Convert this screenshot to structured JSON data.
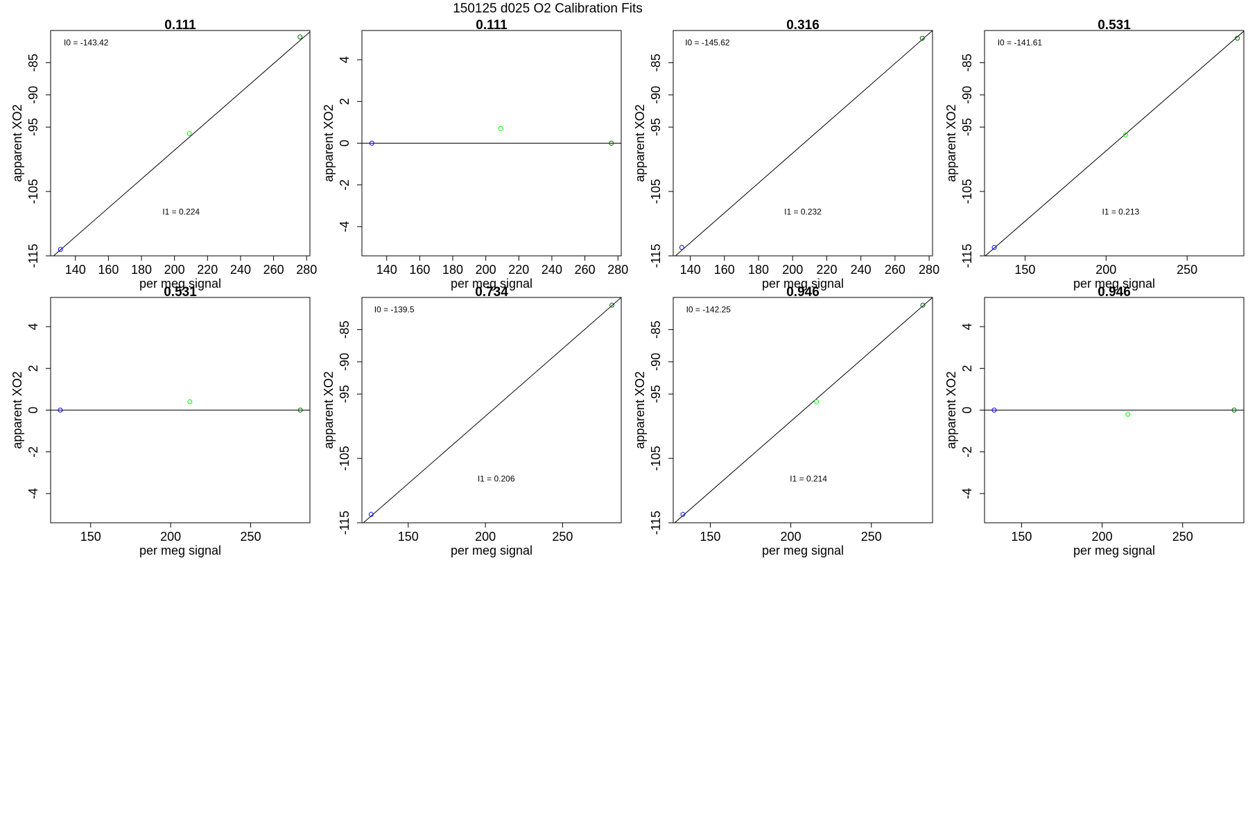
{
  "figure": {
    "title": "150125   d025   O2 Calibration Fits"
  },
  "colors": {
    "axes": "#000000",
    "fit_line": "#000000",
    "point_low": "#0000ff",
    "point_mid": "#00ff00",
    "point_high": "#006400"
  },
  "chart_data": [
    {
      "type": "scatter",
      "title": "0.111",
      "xlabel": "per meg signal",
      "ylabel": "apparent XO2",
      "xlim": [
        125,
        282
      ],
      "ylim": [
        -115,
        -80
      ],
      "xticks": [
        140,
        160,
        180,
        200,
        220,
        240,
        260,
        280
      ],
      "yticks": [
        -115,
        -105,
        -95,
        -90,
        -85
      ],
      "points": [
        {
          "x": 131,
          "y": -114,
          "color": "point_low"
        },
        {
          "x": 209,
          "y": -96,
          "color": "point_mid"
        },
        {
          "x": 276,
          "y": -81,
          "color": "point_high"
        }
      ],
      "fit_line": {
        "x": [
          125,
          282
        ],
        "y": [
          -115.4,
          -80.2
        ]
      },
      "annotations": [
        {
          "text": "I0 =  -143.42",
          "x": 133,
          "y": -82.3,
          "anchor": "start"
        },
        {
          "text": "I1 =  0.224",
          "x": 204,
          "y": -108.6,
          "anchor": "middle"
        }
      ]
    },
    {
      "type": "scatter",
      "title": "0.111",
      "xlabel": "per meg signal",
      "ylabel": "apparent XO2",
      "xlim": [
        125,
        282
      ],
      "ylim": [
        -5.4,
        5.4
      ],
      "xticks": [
        140,
        160,
        180,
        200,
        220,
        240,
        260,
        280
      ],
      "yticks": [
        -4,
        -2,
        0,
        2,
        4
      ],
      "points": [
        {
          "x": 131,
          "y": 0,
          "color": "point_low"
        },
        {
          "x": 209,
          "y": 0.7,
          "color": "point_mid"
        },
        {
          "x": 276,
          "y": 0,
          "color": "point_high"
        }
      ],
      "fit_line": {
        "x": [
          125,
          282
        ],
        "y": [
          0,
          0
        ]
      },
      "annotations": []
    },
    {
      "type": "scatter",
      "title": "0.316",
      "xlabel": "per meg signal",
      "ylabel": "apparent XO2",
      "xlim": [
        130,
        282
      ],
      "ylim": [
        -115,
        -80
      ],
      "xticks": [
        140,
        160,
        180,
        200,
        220,
        240,
        260,
        280
      ],
      "yticks": [
        -115,
        -105,
        -95,
        -90,
        -85
      ],
      "points": [
        {
          "x": 135,
          "y": -113.7,
          "color": "point_low"
        },
        {
          "x": 276,
          "y": -81.2,
          "color": "point_high"
        }
      ],
      "fit_line": {
        "x": [
          130,
          282
        ],
        "y": [
          -115.3,
          -80
        ]
      },
      "annotations": [
        {
          "text": "I0 =  -145.62",
          "x": 137,
          "y": -82.3,
          "anchor": "start"
        },
        {
          "text": "I1 =  0.232",
          "x": 206,
          "y": -108.6,
          "anchor": "middle"
        }
      ]
    },
    {
      "type": "scatter",
      "title": "0.531",
      "xlabel": "per meg signal",
      "ylabel": "apparent XO2",
      "xlim": [
        125,
        285
      ],
      "ylim": [
        -115,
        -80
      ],
      "xticks": [
        150,
        200,
        250
      ],
      "yticks": [
        -115,
        -105,
        -95,
        -90,
        -85
      ],
      "points": [
        {
          "x": 131,
          "y": -113.7,
          "color": "point_low"
        },
        {
          "x": 212,
          "y": -96.2,
          "color": "point_mid"
        },
        {
          "x": 281,
          "y": -81.2,
          "color": "point_high"
        }
      ],
      "fit_line": {
        "x": [
          125,
          285
        ],
        "y": [
          -115.1,
          -80.1
        ]
      },
      "annotations": [
        {
          "text": "I0 =  -141.61",
          "x": 133,
          "y": -82.3,
          "anchor": "start"
        },
        {
          "text": "I1 =  0.213",
          "x": 209,
          "y": -108.6,
          "anchor": "middle"
        }
      ]
    },
    {
      "type": "scatter",
      "title": "0.531",
      "xlabel": "per meg signal",
      "ylabel": "apparent XO2",
      "xlim": [
        125,
        287
      ],
      "ylim": [
        -5.4,
        5.4
      ],
      "xticks": [
        150,
        200,
        250
      ],
      "yticks": [
        -4,
        -2,
        0,
        2,
        4
      ],
      "points": [
        {
          "x": 131,
          "y": 0,
          "color": "point_low"
        },
        {
          "x": 212,
          "y": 0.4,
          "color": "point_mid"
        },
        {
          "x": 281,
          "y": 0,
          "color": "point_high"
        }
      ],
      "fit_line": {
        "x": [
          125,
          287
        ],
        "y": [
          0,
          0
        ]
      },
      "annotations": []
    },
    {
      "type": "scatter",
      "title": "0.734",
      "xlabel": "per meg signal",
      "ylabel": "apparent XO2",
      "xlim": [
        120,
        288
      ],
      "ylim": [
        -115,
        -80
      ],
      "xticks": [
        150,
        200,
        250
      ],
      "yticks": [
        -115,
        -105,
        -95,
        -90,
        -85
      ],
      "points": [
        {
          "x": 126,
          "y": -113.7,
          "color": "point_low"
        },
        {
          "x": 282,
          "y": -81.2,
          "color": "point_high"
        }
      ],
      "fit_line": {
        "x": [
          120,
          288
        ],
        "y": [
          -115.2,
          -80
        ]
      },
      "annotations": [
        {
          "text": "I0 =  -139.5",
          "x": 128,
          "y": -82.3,
          "anchor": "start"
        },
        {
          "text": "I1 =  0.206",
          "x": 207,
          "y": -108.6,
          "anchor": "middle"
        }
      ]
    },
    {
      "type": "scatter",
      "title": "0.946",
      "xlabel": "per meg signal",
      "ylabel": "apparent XO2",
      "xlim": [
        127,
        288
      ],
      "ylim": [
        -115,
        -80
      ],
      "xticks": [
        150,
        200,
        250
      ],
      "yticks": [
        -115,
        -105,
        -95,
        -90,
        -85
      ],
      "points": [
        {
          "x": 133,
          "y": -113.7,
          "color": "point_low"
        },
        {
          "x": 216,
          "y": -96.2,
          "color": "point_mid"
        },
        {
          "x": 282,
          "y": -81.2,
          "color": "point_high"
        }
      ],
      "fit_line": {
        "x": [
          127,
          288
        ],
        "y": [
          -115.2,
          -80
        ]
      },
      "annotations": [
        {
          "text": "I0 =  -142.25",
          "x": 135,
          "y": -82.3,
          "anchor": "start"
        },
        {
          "text": "I1 =  0.214",
          "x": 211,
          "y": -108.6,
          "anchor": "middle"
        }
      ]
    },
    {
      "type": "scatter",
      "title": "0.946",
      "xlabel": "per meg signal",
      "ylabel": "apparent XO2",
      "xlim": [
        127,
        288
      ],
      "ylim": [
        -5.4,
        5.4
      ],
      "xticks": [
        150,
        200,
        250
      ],
      "yticks": [
        -4,
        -2,
        0,
        2,
        4
      ],
      "points": [
        {
          "x": 133,
          "y": 0,
          "color": "point_low"
        },
        {
          "x": 216,
          "y": -0.2,
          "color": "point_mid"
        },
        {
          "x": 282,
          "y": 0,
          "color": "point_high"
        }
      ],
      "fit_line": {
        "x": [
          127,
          288
        ],
        "y": [
          0,
          0
        ]
      },
      "annotations": []
    }
  ]
}
